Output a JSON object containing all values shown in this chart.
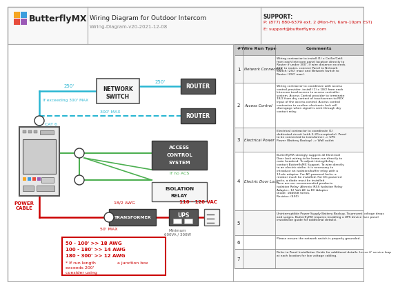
{
  "title": "Wiring Diagram for Outdoor Intercom",
  "subtitle": "Wiring-Diagram-v20-2021-12-08",
  "support_line1": "SUPPORT:",
  "support_line2": "P: (877) 880-6379 ext. 2 (Mon-Fri, 6am-10pm EST)",
  "support_line3": "E: support@butterflymx.com",
  "bg_color": "#ffffff",
  "blue_line": "#29b6d2",
  "green_line": "#4caf50",
  "red_line": "#cc0000",
  "red_text": "#cc0000",
  "wire_types": [
    "Network Connection",
    "Access Control",
    "Electrical Power",
    "Electric Door Lock",
    "",
    "",
    ""
  ],
  "wire_nums": [
    "1",
    "2",
    "3",
    "4",
    "5",
    "6",
    "7"
  ],
  "wire_comments": [
    "Wiring contractor to install (1) x Cat5e/Cat6\nfrom each Intercom panel location directly to\nRouter if under 300'. If wire distance exceeds\n300' to router, connect Panel to Network\nSwitch (250' max) and Network Switch to\nRouter (250' max).",
    "Wiring contractor to coordinate with access\ncontrol provider, install (1) x 18/2 from each\nIntercom touchscreen to access controller\nsystem. Access Control provider to terminate\n18/2 from dry contact of touchscreen to REX\nInput of the access control. Access control\ncontractor to confirm electronic lock will\ndisengage when signal is sent through dry\ncontact relay.",
    "Electrical contractor to coordinate (1)\ndedicated circuit (with 5-20 receptacle). Panel\nto be connected to transformer -> UPS\nPower (Battery Backup) -> Wall outlet",
    "ButterflyMX strongly suggest all Electrical\nDoor Lock wiring to be home-run directly to\nmain headend. To adjust timing/delay,\ncontact ButterflyMX Support. To wire directly\nto an electric strike, it is necessary to\nintroduce an isolation/buffer relay with a\n12vdc adapter. For AC-powered locks, a\nresistor much be installed. For DC-powered\nlocks, a diode must be installed.\nHere are our recommended products:\nIsolation Relay: Altronix IR5S Isolation Relay\nAdapter: 12 Volt AC to DC Adapter\nDiode: 1N4008 Series\nResistor: (450)",
    "Uninterruptible Power Supply Battery Backup. To prevent voltage drops\nand surges, ButterflyMX requires installing a UPS device (see panel\ninstallation guide for additional details).",
    "Please ensure the network switch is properly grounded.",
    "Refer to Panel Installation Guide for additional details. Leave 6' service loop\nat each location for low voltage cabling."
  ],
  "logo_colors": [
    "#f5a623",
    "#3b9ddd",
    "#e74c3c",
    "#9b59b6"
  ]
}
